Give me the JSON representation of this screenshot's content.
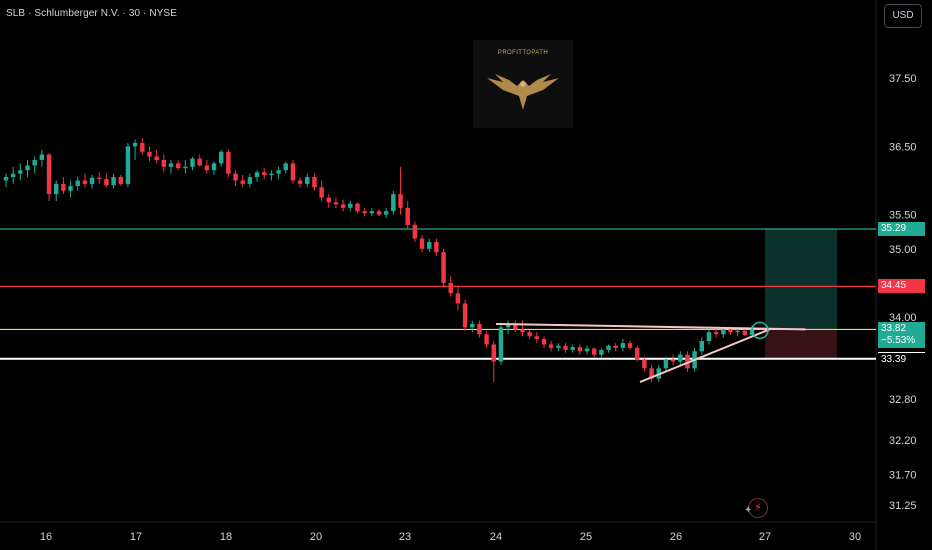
{
  "header": {
    "symbol_title": "SLB · Schlumberger N.V. · 30 · NYSE",
    "currency": "USD"
  },
  "logo": {
    "text": "PROFITTOPATH"
  },
  "chart_data": {
    "type": "candlestick",
    "title": "SLB · Schlumberger N.V. · 30 · NYSE",
    "ylim": [
      31.1,
      38.05
    ],
    "y_ticks": [
      "37.50",
      "36.50",
      "35.50",
      "35.00",
      "34.00",
      "32.80",
      "32.20",
      "31.70",
      "31.25"
    ],
    "x_ticks": [
      {
        "label": "16",
        "day": 0
      },
      {
        "label": "17",
        "day": 1
      },
      {
        "label": "18",
        "day": 2
      },
      {
        "label": "20",
        "day": 3
      },
      {
        "label": "23",
        "day": 4
      },
      {
        "label": "24",
        "day": 5
      },
      {
        "label": "25",
        "day": 6
      },
      {
        "label": "26",
        "day": 7
      },
      {
        "label": "27",
        "day": 8
      },
      {
        "label": "30",
        "day": 9
      }
    ],
    "candles": [
      [
        36.0,
        36.1,
        35.9,
        36.05
      ],
      [
        36.05,
        36.2,
        35.95,
        36.1
      ],
      [
        36.1,
        36.25,
        36.0,
        36.15
      ],
      [
        36.15,
        36.3,
        36.05,
        36.22
      ],
      [
        36.22,
        36.35,
        36.1,
        36.3
      ],
      [
        36.3,
        36.45,
        36.2,
        36.38
      ],
      [
        36.38,
        36.4,
        35.7,
        35.8
      ],
      [
        35.8,
        36.0,
        35.7,
        35.95
      ],
      [
        35.95,
        36.05,
        35.8,
        35.85
      ],
      [
        35.85,
        36.0,
        35.75,
        35.92
      ],
      [
        35.92,
        36.05,
        35.85,
        36.0
      ],
      [
        36.0,
        36.1,
        35.9,
        35.95
      ],
      [
        35.95,
        36.08,
        35.88,
        36.04
      ],
      [
        36.04,
        36.12,
        35.95,
        36.02
      ],
      [
        36.02,
        36.1,
        35.9,
        35.93
      ],
      [
        35.93,
        36.1,
        35.88,
        36.05
      ],
      [
        36.05,
        36.08,
        35.92,
        35.95
      ],
      [
        35.95,
        36.55,
        35.9,
        36.5
      ],
      [
        36.5,
        36.6,
        36.3,
        36.55
      ],
      [
        36.55,
        36.62,
        36.38,
        36.42
      ],
      [
        36.42,
        36.5,
        36.28,
        36.35
      ],
      [
        36.35,
        36.45,
        36.25,
        36.3
      ],
      [
        36.3,
        36.38,
        36.12,
        36.2
      ],
      [
        36.2,
        36.3,
        36.1,
        36.25
      ],
      [
        36.25,
        36.3,
        36.15,
        36.18
      ],
      [
        36.18,
        36.3,
        36.1,
        36.2
      ],
      [
        36.2,
        36.35,
        36.15,
        36.32
      ],
      [
        36.32,
        36.38,
        36.2,
        36.22
      ],
      [
        36.22,
        36.3,
        36.1,
        36.15
      ],
      [
        36.15,
        36.28,
        36.08,
        36.25
      ],
      [
        36.25,
        36.45,
        36.2,
        36.42
      ],
      [
        36.42,
        36.45,
        36.05,
        36.1
      ],
      [
        36.1,
        36.15,
        35.92,
        36.0
      ],
      [
        36.0,
        36.08,
        35.9,
        35.95
      ],
      [
        35.95,
        36.1,
        35.9,
        36.05
      ],
      [
        36.05,
        36.15,
        35.98,
        36.12
      ],
      [
        36.12,
        36.18,
        36.02,
        36.08
      ],
      [
        36.08,
        36.15,
        36.0,
        36.1
      ],
      [
        36.1,
        36.2,
        36.02,
        36.15
      ],
      [
        36.15,
        36.28,
        36.1,
        36.25
      ],
      [
        36.25,
        36.3,
        35.95,
        36.0
      ],
      [
        36.0,
        36.05,
        35.9,
        35.95
      ],
      [
        35.95,
        36.1,
        35.9,
        36.05
      ],
      [
        36.05,
        36.1,
        35.85,
        35.9
      ],
      [
        35.9,
        36.0,
        35.7,
        35.75
      ],
      [
        35.75,
        35.8,
        35.6,
        35.68
      ],
      [
        35.68,
        35.75,
        35.6,
        35.65
      ],
      [
        35.65,
        35.72,
        35.55,
        35.6
      ],
      [
        35.6,
        35.7,
        35.55,
        35.66
      ],
      [
        35.66,
        35.68,
        35.52,
        35.55
      ],
      [
        35.55,
        35.6,
        35.48,
        35.52
      ],
      [
        35.52,
        35.6,
        35.48,
        35.55
      ],
      [
        35.55,
        35.58,
        35.48,
        35.5
      ],
      [
        35.5,
        35.6,
        35.45,
        35.55
      ],
      [
        35.55,
        35.85,
        35.5,
        35.8
      ],
      [
        35.8,
        36.2,
        35.5,
        35.6
      ],
      [
        35.6,
        35.7,
        35.3,
        35.35
      ],
      [
        35.35,
        35.4,
        35.1,
        35.15
      ],
      [
        35.15,
        35.2,
        34.95,
        35.0
      ],
      [
        35.0,
        35.15,
        34.95,
        35.1
      ],
      [
        35.1,
        35.15,
        34.9,
        34.95
      ],
      [
        34.95,
        35.0,
        34.45,
        34.5
      ],
      [
        34.5,
        34.6,
        34.3,
        34.35
      ],
      [
        34.35,
        34.45,
        34.1,
        34.2
      ],
      [
        34.2,
        34.25,
        33.8,
        33.85
      ],
      [
        33.85,
        33.95,
        33.78,
        33.9
      ],
      [
        33.9,
        33.95,
        33.7,
        33.75
      ],
      [
        33.75,
        33.8,
        33.55,
        33.6
      ],
      [
        33.6,
        33.65,
        33.05,
        33.35
      ],
      [
        33.35,
        33.9,
        33.3,
        33.85
      ],
      [
        33.85,
        33.95,
        33.75,
        33.9
      ],
      [
        33.9,
        33.95,
        33.78,
        33.82
      ],
      [
        33.82,
        33.95,
        33.72,
        33.78
      ],
      [
        33.78,
        33.82,
        33.68,
        33.72
      ],
      [
        33.72,
        33.78,
        33.62,
        33.68
      ],
      [
        33.68,
        33.72,
        33.55,
        33.6
      ],
      [
        33.6,
        33.65,
        33.5,
        33.55
      ],
      [
        33.55,
        33.62,
        33.5,
        33.58
      ],
      [
        33.58,
        33.62,
        33.48,
        33.52
      ],
      [
        33.52,
        33.6,
        33.48,
        33.56
      ],
      [
        33.56,
        33.6,
        33.45,
        33.5
      ],
      [
        33.5,
        33.58,
        33.45,
        33.54
      ],
      [
        33.54,
        33.56,
        33.42,
        33.45
      ],
      [
        33.45,
        33.55,
        33.42,
        33.52
      ],
      [
        33.52,
        33.6,
        33.48,
        33.58
      ],
      [
        33.58,
        33.62,
        33.5,
        33.55
      ],
      [
        33.55,
        33.68,
        33.5,
        33.62
      ],
      [
        33.62,
        33.66,
        33.52,
        33.55
      ],
      [
        33.55,
        33.58,
        33.35,
        33.38
      ],
      [
        33.38,
        33.42,
        33.2,
        33.25
      ],
      [
        33.25,
        33.3,
        33.05,
        33.1
      ],
      [
        33.1,
        33.3,
        33.05,
        33.25
      ],
      [
        33.25,
        33.42,
        33.2,
        33.38
      ],
      [
        33.38,
        33.45,
        33.3,
        33.35
      ],
      [
        33.35,
        33.5,
        33.3,
        33.45
      ],
      [
        33.45,
        33.5,
        33.2,
        33.25
      ],
      [
        33.25,
        33.55,
        33.2,
        33.5
      ],
      [
        33.5,
        33.7,
        33.45,
        33.65
      ],
      [
        33.65,
        33.82,
        33.6,
        33.78
      ],
      [
        33.78,
        33.86,
        33.7,
        33.75
      ],
      [
        33.75,
        33.85,
        33.7,
        33.82
      ],
      [
        33.82,
        33.86,
        33.74,
        33.78
      ],
      [
        33.78,
        33.84,
        33.72,
        33.8
      ],
      [
        33.8,
        33.85,
        33.72,
        33.74
      ],
      [
        33.74,
        33.88,
        33.72,
        33.82
      ]
    ],
    "levels": [
      {
        "name": "take-profit",
        "price": 35.29,
        "label": "35.29",
        "color": "#22ab94",
        "tag_color": "#22ab94"
      },
      {
        "name": "resistance",
        "price": 34.45,
        "label": "34.45",
        "color": "#f23645",
        "tag_color": "#f23645"
      },
      {
        "name": "current",
        "price": 33.82,
        "label": "33.82",
        "change": "−5.53%",
        "color": "#fbd83b",
        "tag_color": "#22ab94"
      },
      {
        "name": "support",
        "price": 33.39,
        "label": "33.39",
        "color": "#ffffff",
        "tag_color": "#ffffff"
      }
    ],
    "position": {
      "entry": 33.82,
      "target": 35.29,
      "stop": 33.39,
      "start_day": 8.0,
      "end_day": 8.8
    },
    "trendlines": [
      {
        "name": "triangle-top",
        "from": {
          "day": 5.0,
          "price": 33.9
        },
        "to": {
          "day": 8.45,
          "price": 33.82
        },
        "color": "#f7c8c8"
      },
      {
        "name": "triangle-bottom",
        "from": {
          "day": 6.6,
          "price": 33.05
        },
        "to": {
          "day": 8.05,
          "price": 33.82
        },
        "color": "#f7c8c8"
      }
    ],
    "colors": {
      "up": "#22ab94",
      "down": "#f23645",
      "background": "#000000",
      "axis_text": "#d1d4dc"
    }
  }
}
